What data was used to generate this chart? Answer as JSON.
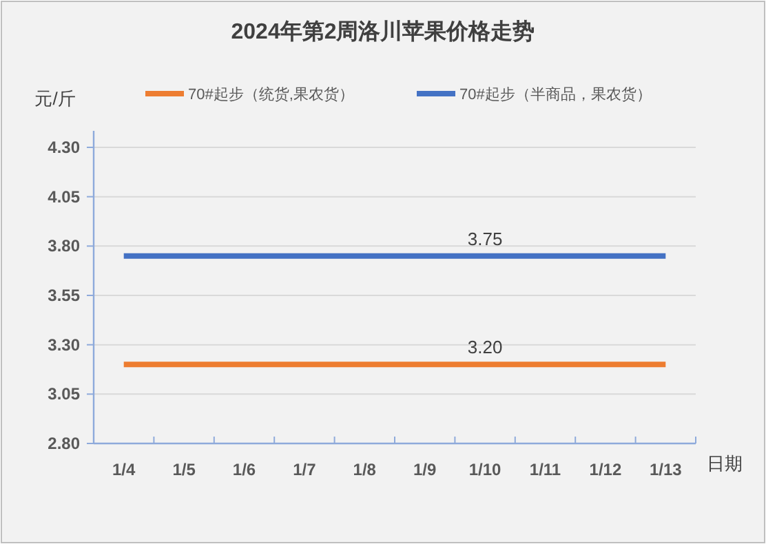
{
  "chart_data": {
    "type": "line",
    "title": "2024年第2周洛川苹果价格走势",
    "xlabel": "日期",
    "ylabel": "元/斤",
    "categories": [
      "1/4",
      "1/5",
      "1/6",
      "1/7",
      "1/8",
      "1/9",
      "1/10",
      "1/11",
      "1/12",
      "1/13"
    ],
    "series": [
      {
        "name": "70#起步（统货,果农货）",
        "color": "#ed7d31",
        "values": [
          3.2,
          3.2,
          3.2,
          3.2,
          3.2,
          3.2,
          3.2,
          3.2,
          3.2,
          3.2
        ],
        "value_labels": [
          null,
          null,
          null,
          null,
          null,
          null,
          "3.20",
          null,
          null,
          null
        ]
      },
      {
        "name": "70#起步（半商品，果农货）",
        "color": "#4472c4",
        "values": [
          3.75,
          3.75,
          3.75,
          3.75,
          3.75,
          3.75,
          3.75,
          3.75,
          3.75,
          3.75
        ],
        "value_labels": [
          null,
          null,
          null,
          null,
          null,
          null,
          "3.75",
          null,
          null,
          null
        ]
      }
    ],
    "ylim": [
      2.8,
      4.3
    ],
    "yticks": [
      {
        "value": 2.8,
        "label": "2.80"
      },
      {
        "value": 3.05,
        "label": "3.05"
      },
      {
        "value": 3.3,
        "label": "3.30"
      },
      {
        "value": 3.55,
        "label": "3.55"
      },
      {
        "value": 3.8,
        "label": "3.80"
      },
      {
        "value": 4.05,
        "label": "4.05"
      },
      {
        "value": 4.3,
        "label": "4.30"
      }
    ],
    "grid": "y",
    "legend": "top"
  }
}
